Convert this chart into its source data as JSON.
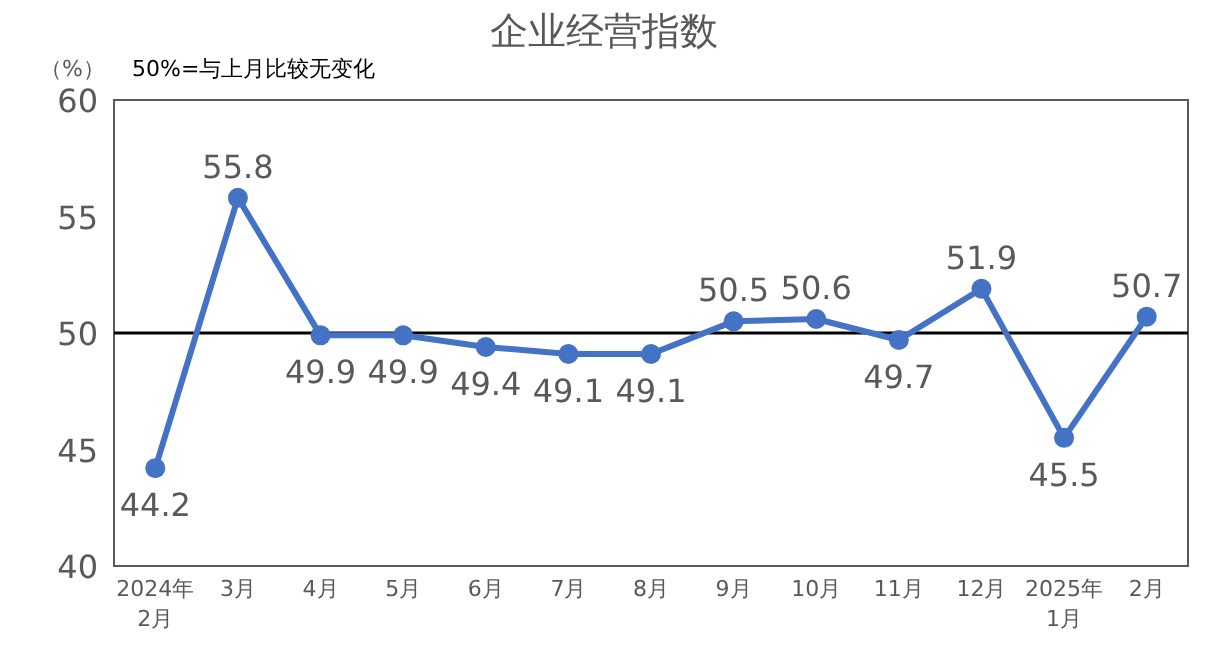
{
  "chart_data": {
    "type": "line",
    "title": "企业经营指数",
    "ylabel": "（%）",
    "annotations": [
      "50%=与上月比较无变化"
    ],
    "categories": [
      "2024年\n2月",
      "3月",
      "4月",
      "5月",
      "6月",
      "7月",
      "8月",
      "9月",
      "10月",
      "11月",
      "12月",
      "2025年\n1月",
      "2月"
    ],
    "series": [
      {
        "color": "#4472c4",
        "values": [
          44.2,
          55.8,
          49.9,
          49.9,
          49.4,
          49.1,
          49.1,
          50.5,
          50.6,
          49.7,
          51.9,
          45.5,
          50.7
        ]
      }
    ],
    "ylim": [
      40,
      60
    ],
    "yticks": [
      40,
      45,
      50,
      55,
      60
    ],
    "grid": false,
    "marker": "circle",
    "line_style": "solid",
    "data_labels": true,
    "ref_lines": [
      {
        "axis": "y",
        "value": 50,
        "color": "#000000"
      }
    ]
  }
}
